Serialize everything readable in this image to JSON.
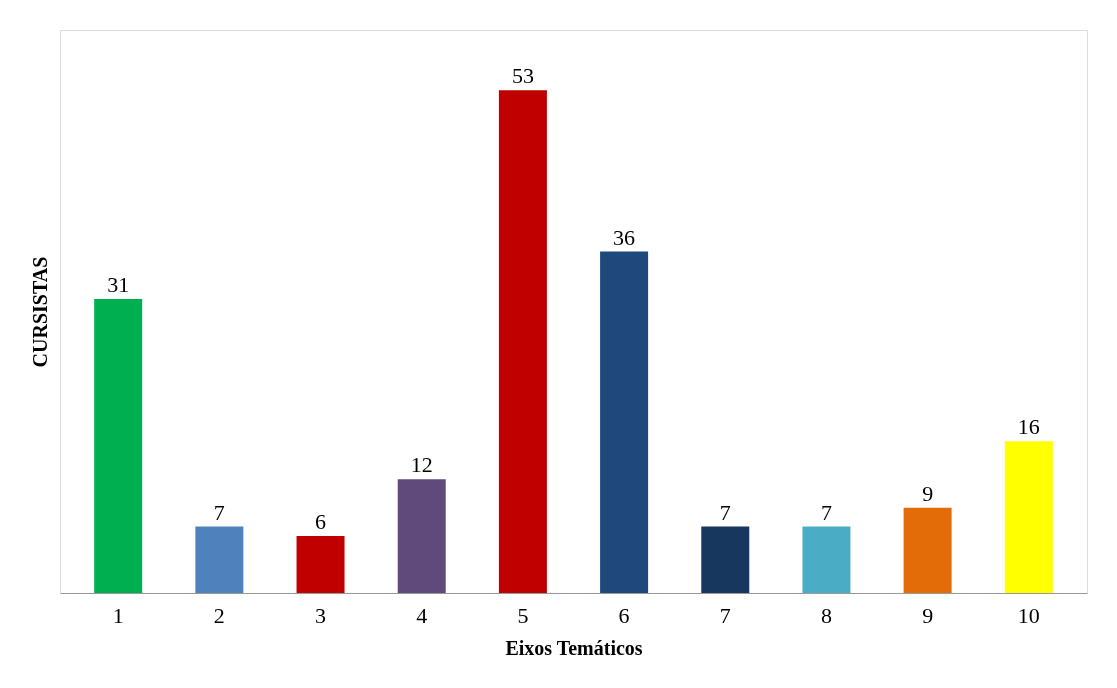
{
  "chart_data": {
    "type": "bar",
    "xlabel": "Eixos Temáticos",
    "ylabel": "CURSISTAS",
    "categories": [
      "1",
      "2",
      "3",
      "4",
      "5",
      "6",
      "7",
      "8",
      "9",
      "10"
    ],
    "values": [
      31,
      7,
      6,
      12,
      53,
      36,
      7,
      7,
      9,
      16
    ],
    "colors": [
      "#00b050",
      "#4f81bd",
      "#c00000",
      "#604a7b",
      "#c00000",
      "#1f497d",
      "#17375e",
      "#4bacc6",
      "#e36c09",
      "#ffff00"
    ],
    "data_labels": true,
    "grid": false
  }
}
